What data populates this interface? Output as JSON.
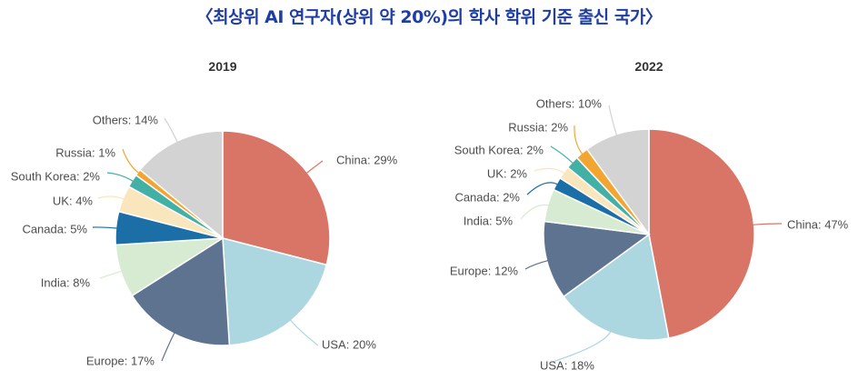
{
  "page": {
    "title": "〈최상위 AI 연구자(상위 약 20%)의 학사 학위 기준 출신 국가〉"
  },
  "chart_data": [
    {
      "type": "pie",
      "title": "2019",
      "slices": [
        {
          "label": "China",
          "value": 29,
          "color": "#d97566"
        },
        {
          "label": "USA",
          "value": 20,
          "color": "#acd6e0"
        },
        {
          "label": "Europe",
          "value": 17,
          "color": "#5e7390"
        },
        {
          "label": "India",
          "value": 8,
          "color": "#d7ebd2"
        },
        {
          "label": "Canada",
          "value": 5,
          "color": "#1b6fa6"
        },
        {
          "label": "UK",
          "value": 4,
          "color": "#f9e6bd"
        },
        {
          "label": "South Korea",
          "value": 2,
          "color": "#43b0a6"
        },
        {
          "label": "Russia",
          "value": 1,
          "color": "#f3a531"
        },
        {
          "label": "Others",
          "value": 14,
          "color": "#d3d3d3"
        }
      ]
    },
    {
      "type": "pie",
      "title": "2022",
      "slices": [
        {
          "label": "China",
          "value": 47,
          "color": "#d97566"
        },
        {
          "label": "USA",
          "value": 18,
          "color": "#acd6e0"
        },
        {
          "label": "Europe",
          "value": 12,
          "color": "#5e7390"
        },
        {
          "label": "India",
          "value": 5,
          "color": "#d7ebd2"
        },
        {
          "label": "Canada",
          "value": 2,
          "color": "#1b6fa6"
        },
        {
          "label": "UK",
          "value": 2,
          "color": "#f9e6bd"
        },
        {
          "label": "South Korea",
          "value": 2,
          "color": "#43b0a6"
        },
        {
          "label": "Russia",
          "value": 2,
          "color": "#f3a531"
        },
        {
          "label": "Others",
          "value": 10,
          "color": "#d3d3d3"
        }
      ]
    }
  ]
}
